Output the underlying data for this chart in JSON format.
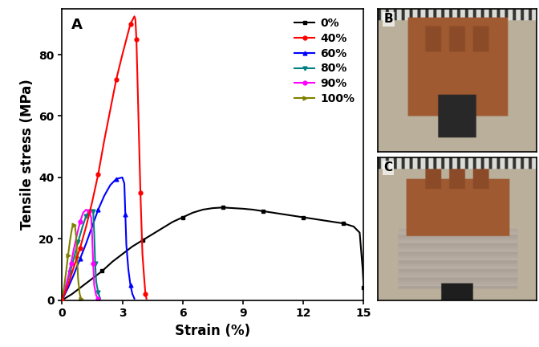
{
  "xlabel": "Strain (%)",
  "ylabel": "Tensile stress (MPa)",
  "xlim": [
    0,
    15
  ],
  "ylim": [
    0,
    95
  ],
  "xticks": [
    0,
    3,
    6,
    9,
    12,
    15
  ],
  "yticks": [
    0,
    20,
    40,
    60,
    80
  ],
  "bg_color": "#ffffff",
  "panel_label_A": "A",
  "panel_label_B": "B",
  "panel_label_C": "C",
  "legend_fontsize": 10,
  "axis_label_fontsize": 12,
  "tick_fontsize": 10,
  "series": [
    {
      "label": "0%",
      "color": "#000000",
      "marker": "s",
      "markersize": 3.5,
      "linewidth": 1.5,
      "strain": [
        0,
        0.5,
        1.0,
        1.5,
        2.0,
        2.5,
        3.0,
        3.5,
        4.0,
        4.5,
        5.0,
        5.5,
        6.0,
        6.5,
        7.0,
        7.5,
        8.0,
        8.5,
        9.0,
        9.5,
        10.0,
        10.5,
        11.0,
        11.5,
        12.0,
        12.5,
        13.0,
        13.5,
        14.0,
        14.5,
        14.8,
        14.95,
        15.0
      ],
      "stress": [
        0,
        2.0,
        4.5,
        7.0,
        9.5,
        12.5,
        15.0,
        17.5,
        19.5,
        21.5,
        23.5,
        25.5,
        27.0,
        28.5,
        29.5,
        30.0,
        30.2,
        30.0,
        29.8,
        29.5,
        29.0,
        28.5,
        28.0,
        27.5,
        27.0,
        26.5,
        26.0,
        25.5,
        25.0,
        24.0,
        22.0,
        10.0,
        4.0
      ]
    },
    {
      "label": "40%",
      "color": "#ff0000",
      "marker": "o",
      "markersize": 3.5,
      "linewidth": 1.5,
      "strain": [
        0,
        0.3,
        0.6,
        0.9,
        1.2,
        1.5,
        1.8,
        2.1,
        2.4,
        2.7,
        3.0,
        3.2,
        3.4,
        3.6,
        3.65,
        3.7,
        3.75,
        3.8,
        3.9,
        4.0,
        4.1,
        4.15,
        4.2
      ],
      "stress": [
        0,
        5.0,
        11.0,
        17.0,
        24.0,
        32.0,
        41.0,
        52.0,
        62.0,
        72.0,
        80.0,
        85.0,
        90.0,
        92.5,
        91.5,
        85.0,
        73.0,
        60.0,
        35.0,
        15.0,
        6.0,
        2.0,
        0.5
      ]
    },
    {
      "label": "60%",
      "color": "#0000ff",
      "marker": "^",
      "markersize": 3.5,
      "linewidth": 1.5,
      "strain": [
        0,
        0.3,
        0.6,
        0.9,
        1.2,
        1.5,
        1.8,
        2.1,
        2.4,
        2.7,
        3.0,
        3.1,
        3.15,
        3.2,
        3.3,
        3.4,
        3.5,
        3.6
      ],
      "stress": [
        0,
        4.0,
        8.5,
        13.5,
        18.5,
        24.0,
        29.5,
        34.0,
        37.5,
        39.5,
        40.0,
        38.0,
        28.0,
        18.0,
        10.0,
        5.0,
        2.0,
        0.5
      ]
    },
    {
      "label": "80%",
      "color": "#008080",
      "marker": "v",
      "markersize": 3.5,
      "linewidth": 1.5,
      "strain": [
        0,
        0.2,
        0.4,
        0.6,
        0.8,
        1.0,
        1.2,
        1.4,
        1.55,
        1.6,
        1.65,
        1.7,
        1.8,
        1.9
      ],
      "stress": [
        0,
        4.5,
        9.0,
        14.0,
        19.0,
        23.5,
        27.5,
        29.5,
        29.0,
        22.0,
        12.0,
        6.0,
        2.5,
        0.5
      ]
    },
    {
      "label": "90%",
      "color": "#ff00ff",
      "marker": "o",
      "markersize": 3.5,
      "linewidth": 1.5,
      "strain": [
        0,
        0.15,
        0.3,
        0.45,
        0.6,
        0.75,
        0.9,
        1.05,
        1.2,
        1.35,
        1.45,
        1.5,
        1.55,
        1.6,
        1.7,
        1.8
      ],
      "stress": [
        0,
        3.5,
        7.5,
        12.0,
        17.0,
        21.5,
        25.5,
        28.5,
        29.5,
        29.0,
        27.0,
        21.0,
        12.0,
        5.0,
        1.5,
        0.5
      ]
    },
    {
      "label": "100%",
      "color": "#808000",
      "marker": ">",
      "markersize": 3.5,
      "linewidth": 1.5,
      "strain": [
        0,
        0.1,
        0.2,
        0.3,
        0.4,
        0.5,
        0.6,
        0.65,
        0.7,
        0.75,
        0.8,
        0.88,
        0.95
      ],
      "stress": [
        0,
        4.0,
        9.0,
        14.5,
        19.5,
        23.5,
        24.5,
        24.0,
        21.0,
        14.0,
        7.0,
        2.0,
        0.5
      ]
    }
  ]
}
